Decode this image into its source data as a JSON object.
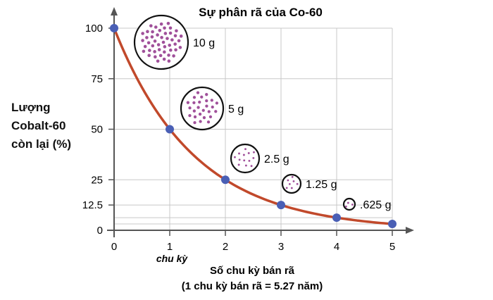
{
  "chart_data": {
    "type": "line",
    "title": "Sự phân rã của Co-60",
    "xlabel_line1": "Số chu kỳ bán rã",
    "xlabel_line2": "(1 chu kỳ bán rã = 5.27 năm)",
    "ylabel_lines": [
      "Lượng",
      "Cobalt-60",
      "còn lại (%)"
    ],
    "x_unit_label": "chu kỳ",
    "x_ticks": [
      "0",
      "1",
      "2",
      "3",
      "4",
      "5"
    ],
    "y_ticks": [
      {
        "value": 100,
        "label": "100"
      },
      {
        "value": 75,
        "label": "75"
      },
      {
        "value": 50,
        "label": "50"
      },
      {
        "value": 25,
        "label": "25"
      },
      {
        "value": 12.5,
        "label": "12.5"
      },
      {
        "value": 0,
        "label": "0"
      }
    ],
    "xlim": [
      0,
      5
    ],
    "ylim": [
      0,
      100
    ],
    "grid": true,
    "series": [
      {
        "x": [
          0,
          1,
          2,
          3,
          4,
          5
        ],
        "values": [
          100,
          50,
          25,
          12.5,
          6.25,
          3.125
        ]
      }
    ],
    "annotations": [
      {
        "label": "10 g",
        "dots": 48
      },
      {
        "label": "5 g",
        "dots": 26
      },
      {
        "label": "2.5 g",
        "dots": 13
      },
      {
        "label": "1.25 g",
        "dots": 7
      },
      {
        "label": ".625 g",
        "dots": 3
      }
    ],
    "colors": {
      "curve": "#c1492b",
      "point": "#4a5fb5",
      "dot": "#a0509a",
      "grid": "#c8c8c8",
      "axis": "#555555"
    }
  }
}
